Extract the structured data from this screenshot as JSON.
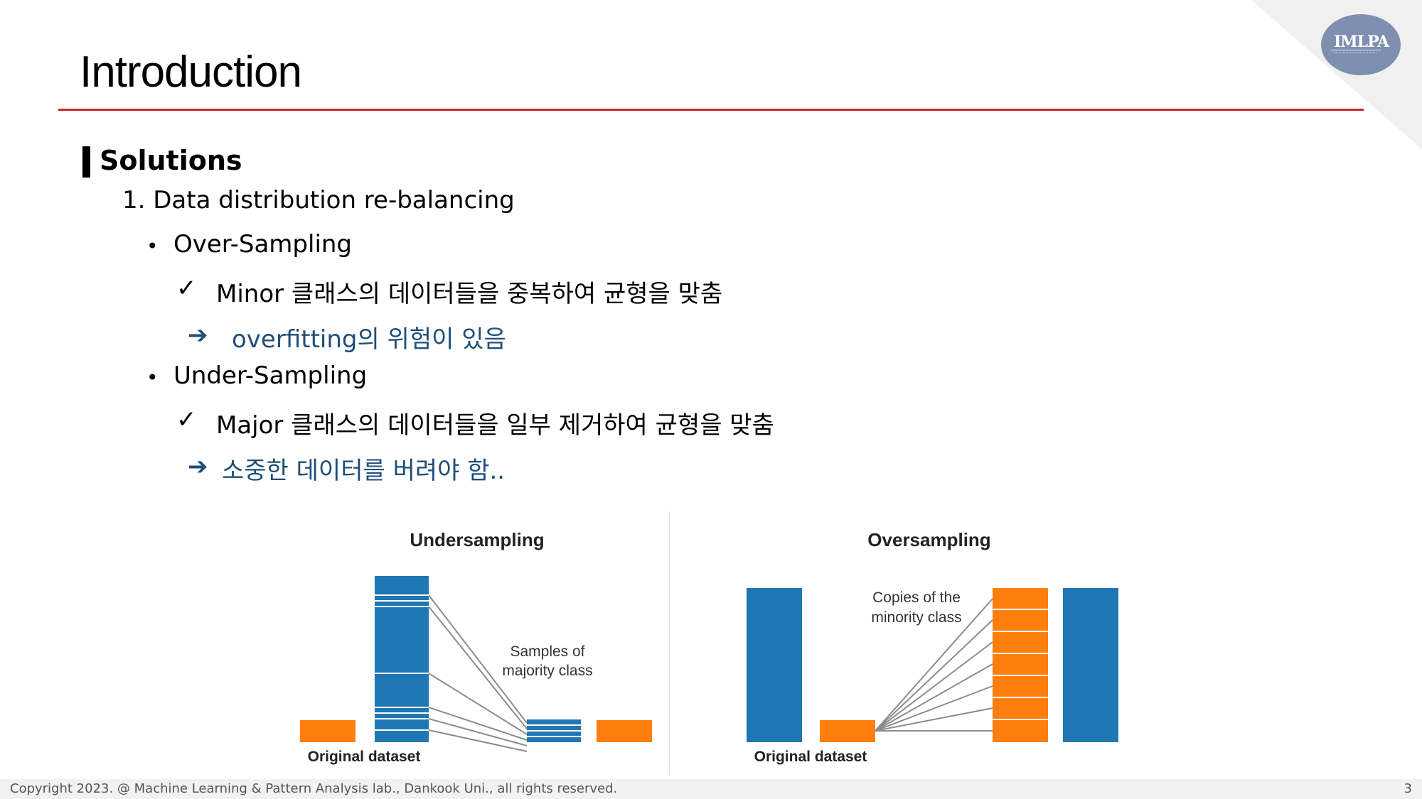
{
  "slide": {
    "title": "Introduction",
    "logo_text": "IMLPA",
    "section_title": "Solutions",
    "item1": "1. Data distribution re-balancing",
    "bullet_glyph": "•",
    "check_glyph": "✓",
    "arrow_glyph": "➔",
    "over_title": "Over-Sampling",
    "over_desc": "Minor 클래스의 데이터들을 중복하여 균형을 맞춤",
    "over_result": "overfitting의 위험이 있음",
    "under_title": "Under-Sampling",
    "under_desc": "Major 클래스의 데이터들을 일부 제거하여 균형을 맞춤",
    "under_result": "소중한 데이터를 버려야 함.."
  },
  "figure": {
    "undersampling": {
      "title": "Undersampling",
      "annotation_line1": "Samples of",
      "annotation_line2": "majority class",
      "caption": "Original dataset"
    },
    "oversampling": {
      "title": "Oversampling",
      "annotation_line1": "Copies of the",
      "annotation_line2": "minority class",
      "caption": "Original dataset"
    },
    "colors": {
      "majority": "#1f77b4",
      "minority": "#ff7f0e",
      "lines": "#8c8c8c"
    }
  },
  "footer": {
    "copyright": "Copyright 2023. @ Machine Learning & Pattern Analysis lab., Dankook Uni., all rights reserved.",
    "page_number": "3"
  }
}
